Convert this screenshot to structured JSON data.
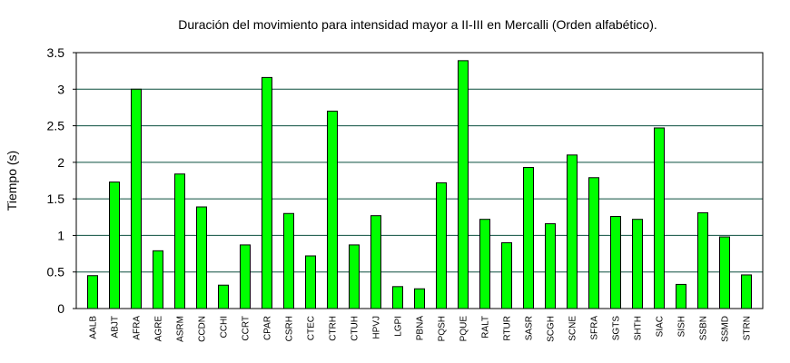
{
  "chart_data": {
    "type": "bar",
    "title": "Duración del movimiento para intensidad mayor a II-III en Mercalli (Orden alfabético).",
    "xlabel": "",
    "ylabel": "Tiempo (s)",
    "ylim": [
      0,
      3.5
    ],
    "yticks": [
      "0",
      "0.5",
      "1",
      "1.5",
      "2",
      "2.5",
      "3",
      "3.5"
    ],
    "grid": true,
    "legend": "none",
    "bar_color": "#00ff00",
    "grid_color": "#0b4f3f",
    "categories": [
      "AALB",
      "ABJT",
      "AFRA",
      "AGRE",
      "ASRM",
      "CCDN",
      "CCHI",
      "CCRT",
      "CPAR",
      "CSRH",
      "CTEC",
      "CTRH",
      "CTUH",
      "HPVJ",
      "LGPI",
      "PBNA",
      "PQSH",
      "PQUE",
      "RALT",
      "RTUR",
      "SASR",
      "SCGH",
      "SCNE",
      "SFRA",
      "SGTS",
      "SHTH",
      "SIAC",
      "SISH",
      "SSBN",
      "SSMD",
      "STRN"
    ],
    "values": [
      0.45,
      1.73,
      3.0,
      0.79,
      1.84,
      1.39,
      0.32,
      0.87,
      3.16,
      1.3,
      0.72,
      2.7,
      0.87,
      1.27,
      0.3,
      0.27,
      1.72,
      3.39,
      1.22,
      0.9,
      1.93,
      1.16,
      2.1,
      1.79,
      1.26,
      1.22,
      2.47,
      0.33,
      1.31,
      0.98,
      0.46
    ]
  }
}
